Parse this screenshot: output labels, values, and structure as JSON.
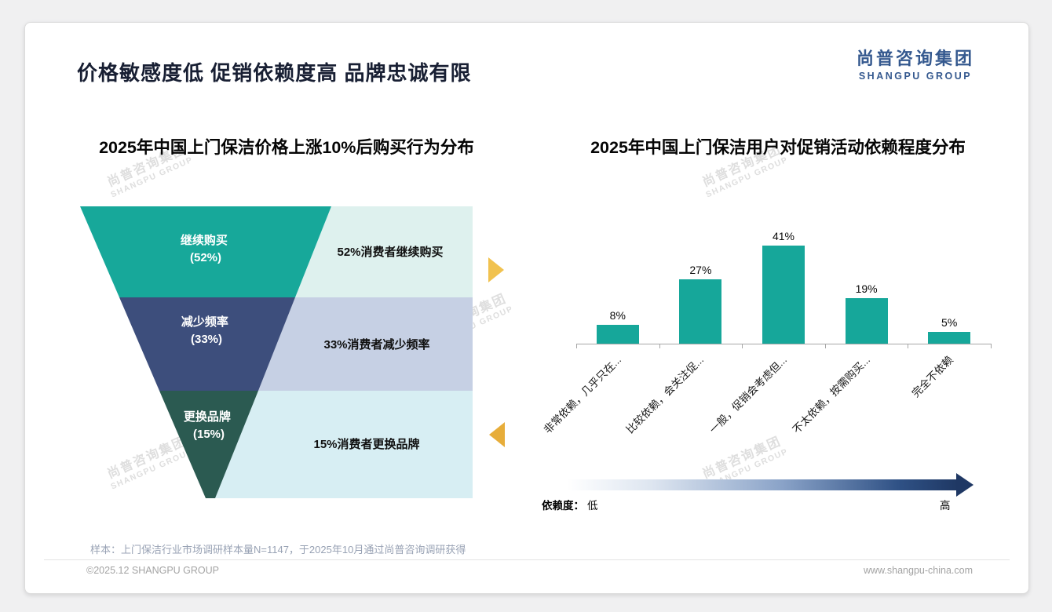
{
  "slide": {
    "headline": "价格敏感度低 促销依赖度高 品牌忠诚有限",
    "logo": {
      "cn": "尚普咨询集团",
      "en": "SHANGPU GROUP"
    },
    "watermark": {
      "cn": "尚普咨询集团",
      "en": "SHANGPU GROUP"
    },
    "sample_note": "样本：上门保洁行业市场调研样本量N=1147，于2025年10月通过尚普咨询调研获得",
    "footer": {
      "left": "©2025.12 SHANGPU GROUP",
      "right": "www.shangpu-china.com"
    },
    "colors": {
      "accent_teal": "#16a79a",
      "brand_navy": "#1f3864",
      "logo_blue": "#35598f",
      "arrow_gold_top": "#f1c24f",
      "arrow_gold_bottom": "#e7ad3a"
    }
  },
  "chart_data": [
    {
      "type": "funnel",
      "title": "2025年中国上门保洁价格上涨10%后购买行为分布",
      "categories": [
        "继续购买",
        "减少频率",
        "更换品牌"
      ],
      "values": [
        52,
        33,
        15
      ],
      "value_labels": [
        "(52%)",
        "(33%)",
        "(15%)"
      ],
      "annotations": [
        "52%消费者继续购买",
        "33%消费者减少频率",
        "15%消费者更换品牌"
      ],
      "segment_colors": [
        "#17a89a",
        "#3d4e7c",
        "#2b5a51"
      ],
      "annotation_colors": [
        "#def1ee",
        "#c6d0e4",
        "#d7eef3"
      ]
    },
    {
      "type": "bar",
      "title": "2025年中国上门保洁用户对促销活动依赖程度分布",
      "categories": [
        "非常依赖，几乎只在...",
        "比较依赖，会关注促...",
        "一般，促销会考虑但...",
        "不太依赖，按需购买...",
        "完全不依赖"
      ],
      "values": [
        8,
        27,
        41,
        19,
        5
      ],
      "value_labels": [
        "8%",
        "27%",
        "41%",
        "19%",
        "5%"
      ],
      "ylim": [
        0,
        48
      ],
      "bar_color": "#16a79a",
      "grid": false,
      "legend": {
        "label": "依赖度：",
        "low": "低",
        "high": "高"
      }
    }
  ]
}
